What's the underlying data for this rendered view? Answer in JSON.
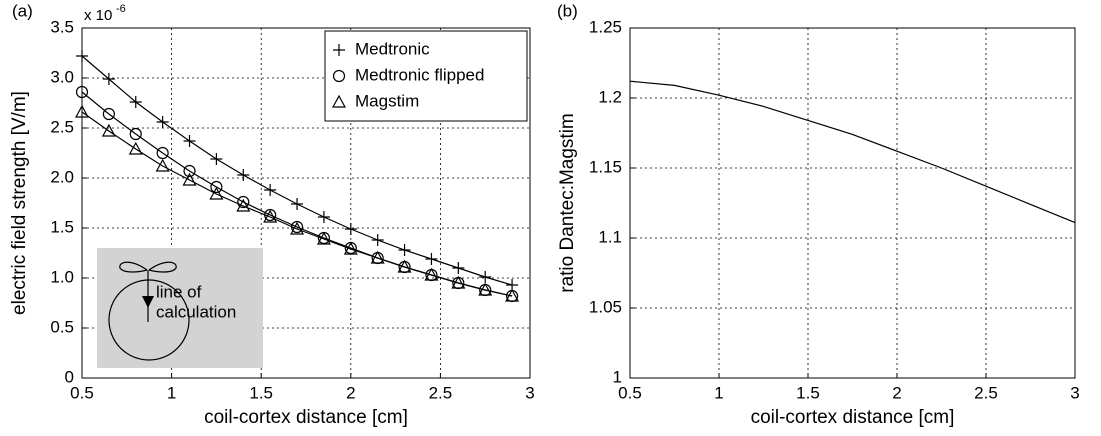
{
  "chart_data": [
    {
      "type": "line",
      "panel": "(a)",
      "xlabel": "coil-cortex distance [cm]",
      "ylabel": "electric field strength [V/m]",
      "multiplier": {
        "base": "x 10",
        "exponent": "-6"
      },
      "annotation": [
        "line of",
        "calculation"
      ],
      "x": [
        0.5,
        0.65,
        0.8,
        0.95,
        1.1,
        1.25,
        1.4,
        1.55,
        1.7,
        1.85,
        2.0,
        2.15,
        2.3,
        2.45,
        2.6,
        2.75,
        2.9
      ],
      "series": [
        {
          "name": "Medtronic",
          "color": "#000000",
          "marker": "plus",
          "values": [
            3.22,
            2.99,
            2.76,
            2.56,
            2.37,
            2.19,
            2.03,
            1.88,
            1.74,
            1.61,
            1.49,
            1.38,
            1.28,
            1.19,
            1.1,
            1.01,
            0.93
          ]
        },
        {
          "name": "Medtronic flipped",
          "color": "#000000",
          "marker": "circle",
          "values": [
            2.86,
            2.64,
            2.44,
            2.25,
            2.07,
            1.91,
            1.76,
            1.63,
            1.51,
            1.4,
            1.3,
            1.2,
            1.11,
            1.03,
            0.95,
            0.88,
            0.82
          ]
        },
        {
          "name": "Magstim",
          "color": "#000000",
          "marker": "triangle",
          "values": [
            2.66,
            2.47,
            2.29,
            2.12,
            1.98,
            1.84,
            1.72,
            1.61,
            1.49,
            1.39,
            1.29,
            1.2,
            1.11,
            1.03,
            0.95,
            0.88,
            0.82
          ]
        }
      ],
      "xlim": [
        0.5,
        3
      ],
      "xticks": [
        0.5,
        1,
        1.5,
        2,
        2.5,
        3
      ],
      "ylim": [
        0,
        3.5
      ],
      "yticks": [
        0,
        0.5,
        {
          "value": 1,
          "label": "1.0"
        },
        1.5,
        {
          "value": 2,
          "label": "2.0"
        },
        2.5,
        {
          "value": 3,
          "label": "3.0"
        },
        3.5
      ],
      "grid": true,
      "legend": "upper right"
    },
    {
      "type": "line",
      "panel": "(b)",
      "xlabel": "coil-cortex distance [cm]",
      "ylabel": "ratio Dantec:Magstim",
      "x": [
        0.5,
        0.75,
        1,
        1.25,
        1.5,
        1.75,
        2,
        2.25,
        2.5,
        2.75,
        3
      ],
      "values": [
        1.212,
        1.209,
        1.202,
        1.194,
        1.184,
        1.174,
        1.162,
        1.15,
        1.137,
        1.124,
        1.111
      ],
      "color": "#000000",
      "xlim": [
        0.5,
        3
      ],
      "xticks": [
        0.5,
        1,
        1.5,
        2,
        2.5,
        3
      ],
      "ylim": [
        1,
        1.25
      ],
      "yticks": [
        1,
        1.05,
        1.1,
        1.15,
        1.2,
        1.25
      ],
      "grid": true
    }
  ]
}
